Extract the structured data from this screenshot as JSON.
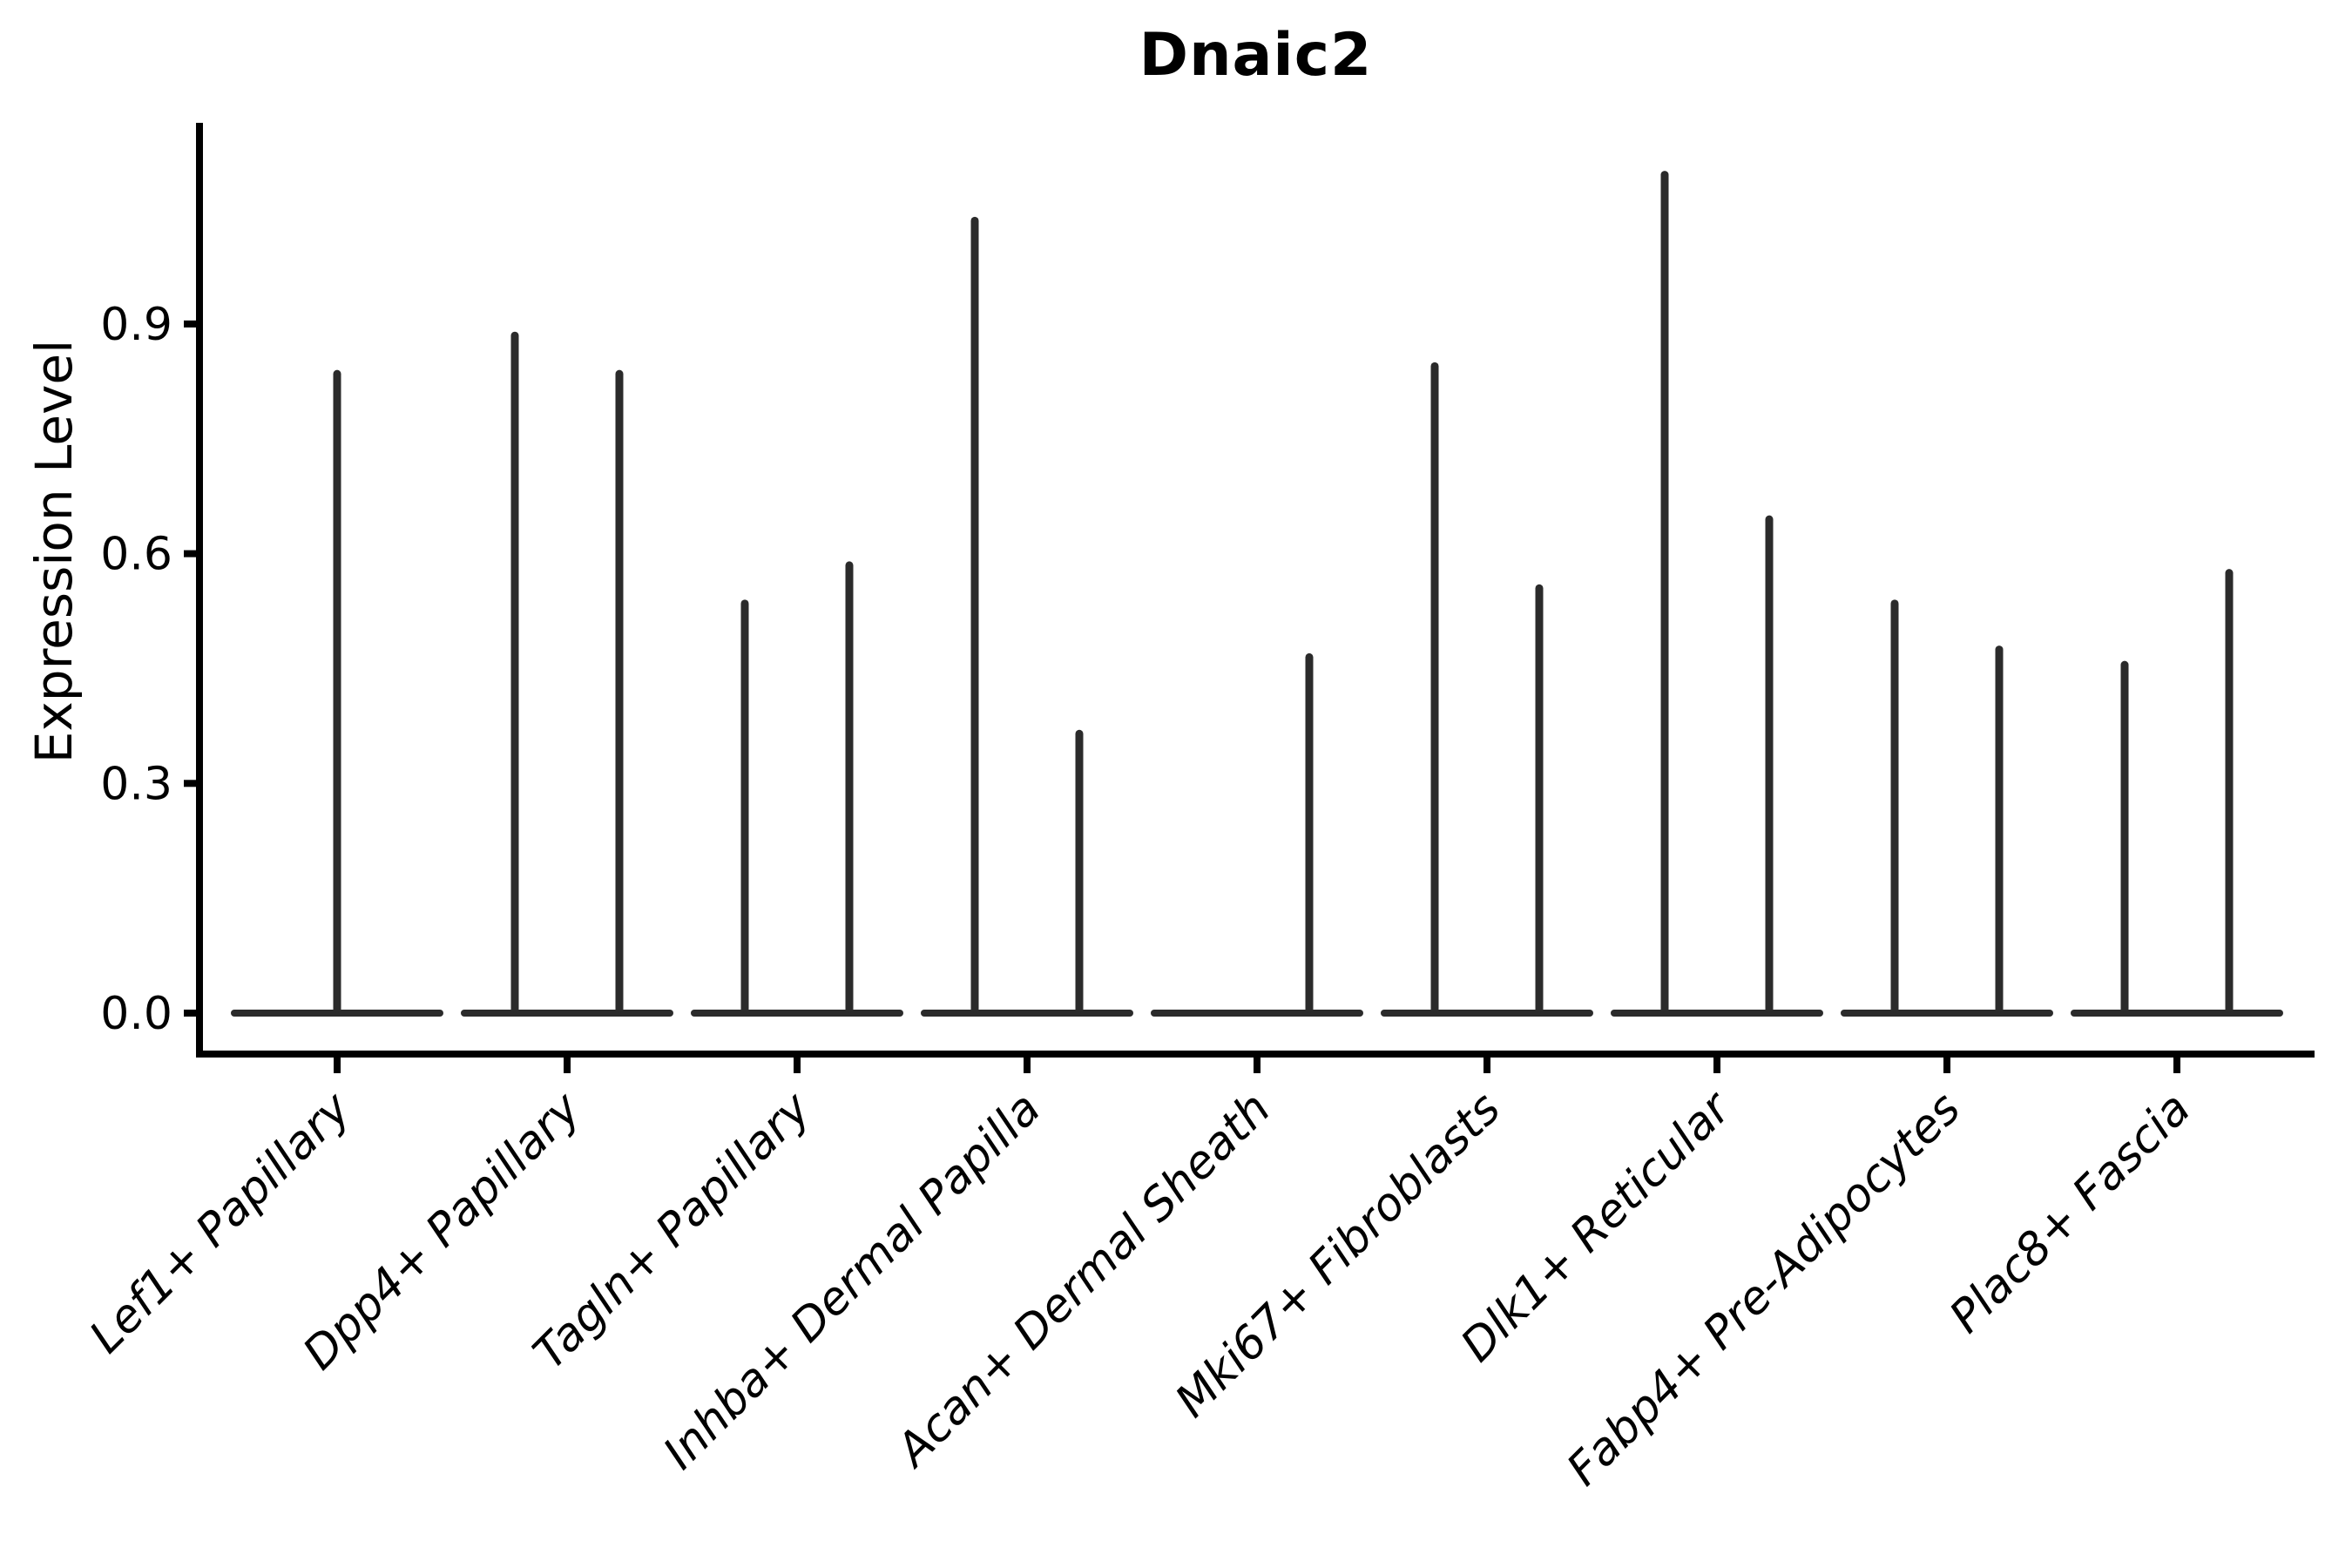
{
  "chart_data": {
    "type": "violin",
    "title": "Dnaic2",
    "ylabel": "Expression Level",
    "xlabel": "",
    "ylim": [
      0,
      1.16
    ],
    "yticks": [
      0.0,
      0.3,
      0.6,
      0.9
    ],
    "ytick_labels": [
      "0.0",
      "0.3",
      "0.6",
      "0.9"
    ],
    "grid": false,
    "legend": "none",
    "x_label_rotation_deg": 45,
    "categories": [
      "Lef1+ Papillary",
      "Dpp4+ Papillary",
      "Tagln+ Papillary",
      "Inhba+ Dermal Papilla",
      "Acan+ Dermal Sheath",
      "Mki67+ Fibroblasts",
      "Dlk1+ Reticular",
      "Fabp4+ Pre-Adipocytes",
      "Plac8+ Fascia"
    ],
    "violins": [
      {
        "category": "Lef1+ Papillary",
        "spikes": [
          {
            "position": "center",
            "max_expression": 0.84
          }
        ]
      },
      {
        "category": "Dpp4+ Papillary",
        "spikes": [
          {
            "position": "left",
            "max_expression": 0.89
          },
          {
            "position": "right",
            "max_expression": 0.84
          }
        ]
      },
      {
        "category": "Tagln+ Papillary",
        "spikes": [
          {
            "position": "left",
            "max_expression": 0.54
          },
          {
            "position": "right",
            "max_expression": 0.59
          }
        ]
      },
      {
        "category": "Inhba+ Dermal Papilla",
        "spikes": [
          {
            "position": "left",
            "max_expression": 1.04
          },
          {
            "position": "right",
            "max_expression": 0.37
          }
        ]
      },
      {
        "category": "Acan+ Dermal Sheath",
        "spikes": [
          {
            "position": "right",
            "max_expression": 0.47
          }
        ]
      },
      {
        "category": "Mki67+ Fibroblasts",
        "spikes": [
          {
            "position": "left",
            "max_expression": 0.85
          },
          {
            "position": "right",
            "max_expression": 0.56
          }
        ]
      },
      {
        "category": "Dlk1+ Reticular",
        "spikes": [
          {
            "position": "left",
            "max_expression": 1.1
          },
          {
            "position": "right",
            "max_expression": 0.65
          }
        ]
      },
      {
        "category": "Fabp4+ Pre-Adipocytes",
        "spikes": [
          {
            "position": "left",
            "max_expression": 0.54
          },
          {
            "position": "right",
            "max_expression": 0.48
          }
        ]
      },
      {
        "category": "Plac8+ Fascia",
        "spikes": [
          {
            "position": "left",
            "max_expression": 0.46
          },
          {
            "position": "right",
            "max_expression": 0.58
          }
        ]
      }
    ],
    "colors": {
      "violin": "#2b2b2b",
      "axis": "#000000",
      "text": "#000000"
    }
  }
}
